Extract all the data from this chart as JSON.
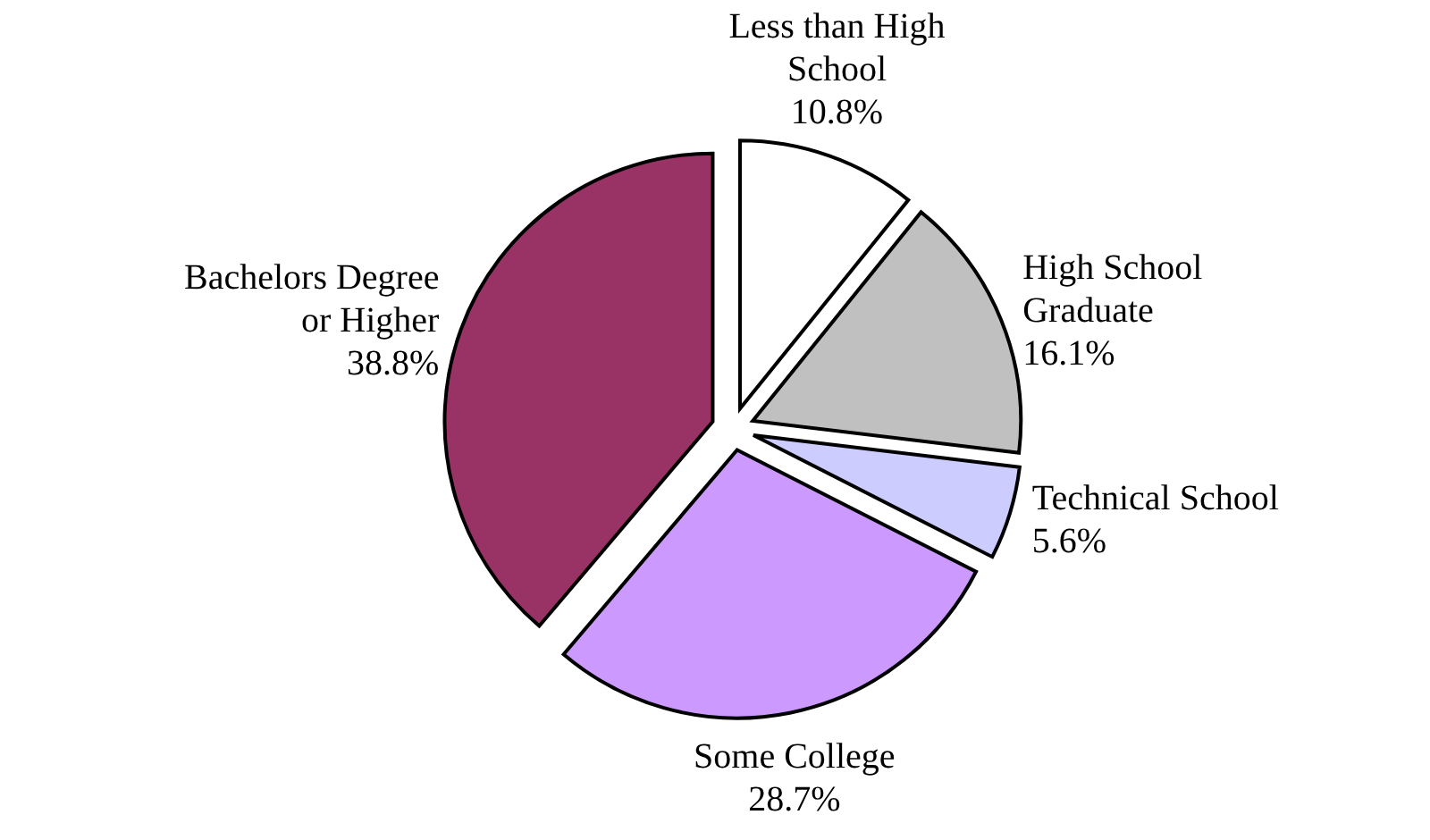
{
  "chart_data": {
    "type": "pie",
    "categories": [
      "Less than High School",
      "High School Graduate",
      "Technical School",
      "Some College",
      "Bachelors Degree or Higher"
    ],
    "values": [
      10.8,
      16.1,
      5.6,
      28.7,
      38.8
    ],
    "value_labels": [
      "10.8%",
      "16.1%",
      "5.6%",
      "28.7%",
      "38.8%"
    ],
    "colors": [
      "#ffffff",
      "#c0c0c0",
      "#ccccff",
      "#cc99ff",
      "#993366"
    ]
  }
}
